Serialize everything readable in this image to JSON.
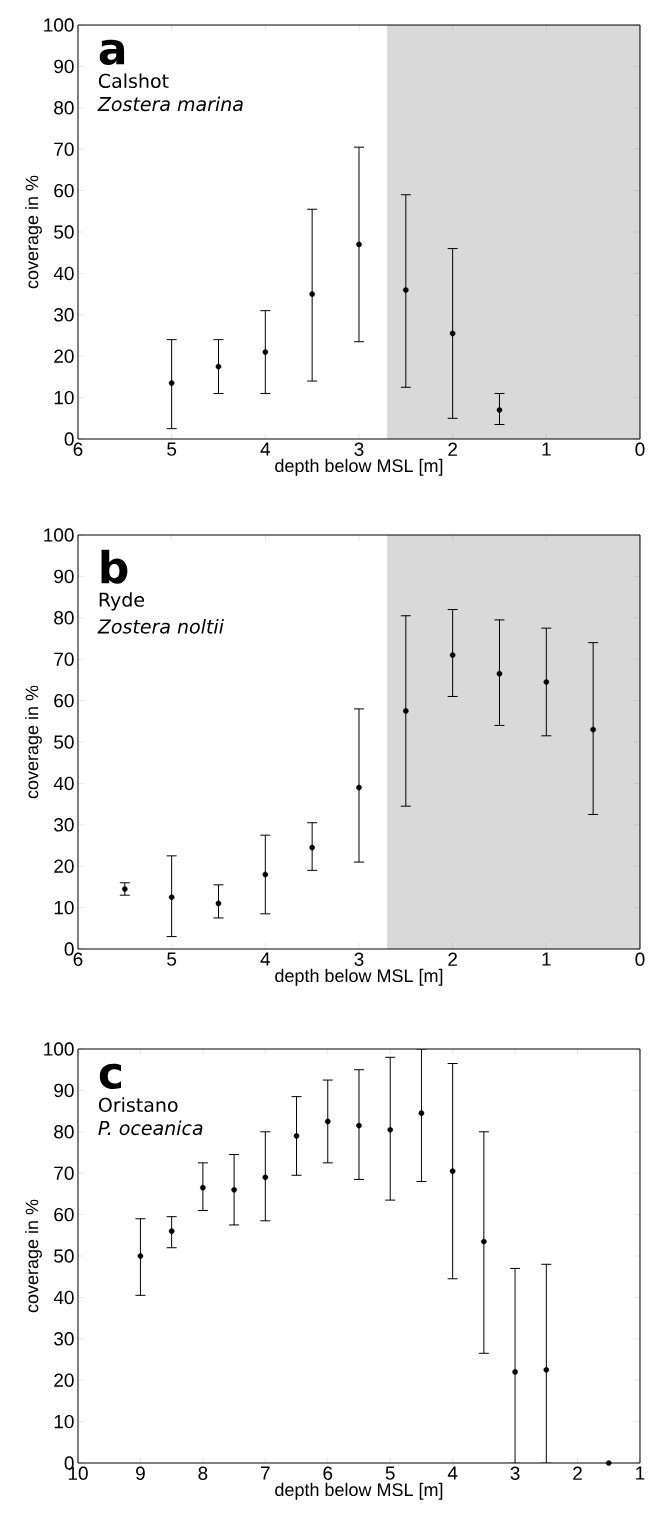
{
  "chart_data": [
    {
      "type": "scatter",
      "title": "a",
      "annotations": [
        "Calshot",
        "Zostera marina"
      ],
      "xlabel": "depth below MSL [m]",
      "ylabel": "coverage in %",
      "marker": "circle",
      "color": "#000000",
      "x": [
        5,
        4.5,
        4,
        3.5,
        3,
        2.5,
        2,
        1.5
      ],
      "values": [
        13.5,
        17.5,
        21,
        35,
        47,
        36,
        25.5,
        7
      ],
      "errors": [
        [
          2.5,
          24
        ],
        [
          11,
          24
        ],
        [
          11,
          31
        ],
        [
          14,
          55.5
        ],
        [
          23.5,
          70.5
        ],
        [
          12.5,
          59
        ],
        [
          5,
          46
        ],
        [
          3.5,
          11
        ]
      ],
      "bands": [
        {
          "axis": "x",
          "from": 2.7,
          "to": 0,
          "color": "#d9d9d9"
        }
      ],
      "xlim": [
        6,
        0
      ],
      "xticks": [
        6,
        5,
        4,
        3,
        2,
        1,
        0
      ],
      "ylim": [
        0,
        100
      ],
      "yticks": [
        0,
        10,
        20,
        30,
        40,
        50,
        60,
        70,
        80,
        90,
        100
      ],
      "grid": false
    },
    {
      "type": "scatter",
      "title": "b",
      "annotations": [
        "Ryde",
        "Zostera noltii"
      ],
      "xlabel": "depth below MSL [m]",
      "ylabel": "coverage in %",
      "marker": "circle",
      "color": "#000000",
      "x": [
        5.5,
        5,
        4.5,
        4,
        3.5,
        3,
        2.5,
        2,
        1.5,
        1,
        0.5
      ],
      "values": [
        14.5,
        12.5,
        11,
        18,
        24.5,
        39,
        57.5,
        71,
        66.5,
        64.5,
        53
      ],
      "errors": [
        [
          13,
          16
        ],
        [
          3,
          22.5
        ],
        [
          7.5,
          15.5
        ],
        [
          8.5,
          27.5
        ],
        [
          19,
          30.5
        ],
        [
          21,
          58
        ],
        [
          34.5,
          80.5
        ],
        [
          61,
          82
        ],
        [
          54,
          79.5
        ],
        [
          51.5,
          77.5
        ],
        [
          32.5,
          74
        ]
      ],
      "bands": [
        {
          "axis": "x",
          "from": 2.7,
          "to": 0,
          "color": "#d9d9d9"
        }
      ],
      "xlim": [
        6,
        0
      ],
      "xticks": [
        6,
        5,
        4,
        3,
        2,
        1,
        0
      ],
      "ylim": [
        0,
        100
      ],
      "yticks": [
        0,
        10,
        20,
        30,
        40,
        50,
        60,
        70,
        80,
        90,
        100
      ],
      "grid": false
    },
    {
      "type": "scatter",
      "title": "c",
      "annotations": [
        "Oristano",
        "P. oceanica"
      ],
      "xlabel": "depth below MSL [m]",
      "ylabel": "coverage in %",
      "marker": "circle",
      "color": "#000000",
      "x": [
        9,
        8.5,
        8,
        7.5,
        7,
        6.5,
        6,
        5.5,
        5,
        4.5,
        4,
        3.5,
        3,
        2.5,
        1.5
      ],
      "values": [
        50,
        56,
        66.5,
        66,
        69,
        79,
        82.5,
        81.5,
        80.5,
        84.5,
        70.5,
        53.5,
        22,
        22.5,
        0
      ],
      "errors": [
        [
          40.5,
          59
        ],
        [
          52,
          59.5
        ],
        [
          61,
          72.5
        ],
        [
          57.5,
          74.5
        ],
        [
          58.5,
          80
        ],
        [
          69.5,
          88.5
        ],
        [
          72.5,
          92.5
        ],
        [
          68.5,
          95
        ],
        [
          63.5,
          98
        ],
        [
          68,
          100
        ],
        [
          44.5,
          96.5
        ],
        [
          26.5,
          80
        ],
        [
          0,
          47
        ],
        [
          0,
          48
        ],
        null
      ],
      "xlim": [
        10,
        1
      ],
      "xticks": [
        10,
        9,
        8,
        7,
        6,
        5,
        4,
        3,
        2,
        1
      ],
      "ylim": [
        0,
        100
      ],
      "yticks": [
        0,
        10,
        20,
        30,
        40,
        50,
        60,
        70,
        80,
        90,
        100
      ],
      "grid": false
    }
  ]
}
